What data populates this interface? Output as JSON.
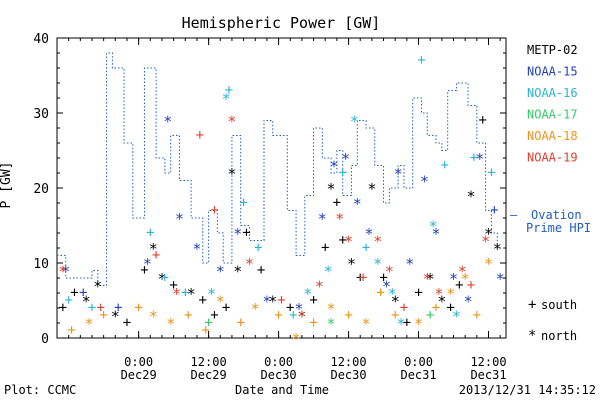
{
  "page": {
    "footer_left": "Plot: CCMC",
    "footer_right": "2013/12/31  14:35:12"
  },
  "legend": {
    "satellites": [
      {
        "name": "METP-02",
        "color": "#000000"
      },
      {
        "name": "NOAA-15",
        "color": "#1f3fbf"
      },
      {
        "name": "NOAA-16",
        "color": "#2ab4d6"
      },
      {
        "name": "NOAA-17",
        "color": "#33cc66"
      },
      {
        "name": "NOAA-18",
        "color": "#f0921a"
      },
      {
        "name": "NOAA-19",
        "color": "#e0402a"
      }
    ],
    "ovation": {
      "dash": "—",
      "label": "Ovation Prime HPI",
      "color": "#1f5fbf"
    },
    "markers": [
      {
        "symbol": "+",
        "label": "south"
      },
      {
        "symbol": "*",
        "label": "north"
      }
    ]
  },
  "chart_data": {
    "type": "scatter",
    "title": "Hemispheric Power [GW]",
    "xlabel": "Date and Time",
    "ylabel": "P [GW]",
    "ylim": [
      0,
      40
    ],
    "yticks": [
      0,
      10,
      20,
      30,
      40
    ],
    "xlim": [
      "2013-12-28T10:00",
      "2013-12-31T15:00"
    ],
    "xticks": [
      {
        "time": "2013-12-29T00:00",
        "line1": "0:00",
        "line2": "Dec29"
      },
      {
        "time": "2013-12-29T12:00",
        "line1": "12:00",
        "line2": "Dec29"
      },
      {
        "time": "2013-12-30T00:00",
        "line1": "0:00",
        "line2": "Dec30"
      },
      {
        "time": "2013-12-30T12:00",
        "line1": "12:00",
        "line2": "Dec30"
      },
      {
        "time": "2013-12-31T00:00",
        "line1": "0:00",
        "line2": "Dec31"
      },
      {
        "time": "2013-12-31T12:00",
        "line1": "12:00",
        "line2": "Dec31"
      }
    ],
    "ovation_step": [
      [
        "2013-12-28T10:00",
        11
      ],
      [
        "2013-12-28T11:30",
        8
      ],
      [
        "2013-12-28T14:00",
        8
      ],
      [
        "2013-12-28T16:00",
        9
      ],
      [
        "2013-12-28T17:00",
        7
      ],
      [
        "2013-12-28T18:30",
        38
      ],
      [
        "2013-12-28T19:30",
        36
      ],
      [
        "2013-12-28T21:30",
        26
      ],
      [
        "2013-12-28T23:00",
        16
      ],
      [
        "2013-12-29T01:00",
        36
      ],
      [
        "2013-12-29T03:00",
        24
      ],
      [
        "2013-12-29T04:30",
        22
      ],
      [
        "2013-12-29T05:30",
        27
      ],
      [
        "2013-12-29T07:00",
        21
      ],
      [
        "2013-12-29T09:00",
        16
      ],
      [
        "2013-12-29T11:00",
        10
      ],
      [
        "2013-12-29T12:00",
        17
      ],
      [
        "2013-12-29T13:30",
        14
      ],
      [
        "2013-12-29T14:30",
        10
      ],
      [
        "2013-12-29T16:00",
        27
      ],
      [
        "2013-12-29T17:30",
        15
      ],
      [
        "2013-12-29T19:00",
        13
      ],
      [
        "2013-12-29T20:30",
        13
      ],
      [
        "2013-12-29T21:30",
        29
      ],
      [
        "2013-12-29T23:00",
        27
      ],
      [
        "2013-12-30T01:30",
        17
      ],
      [
        "2013-12-30T03:00",
        11
      ],
      [
        "2013-12-30T04:30",
        19
      ],
      [
        "2013-12-30T06:00",
        28
      ],
      [
        "2013-12-30T07:30",
        24
      ],
      [
        "2013-12-30T09:00",
        22
      ],
      [
        "2013-12-30T10:00",
        25
      ],
      [
        "2013-12-30T11:00",
        19
      ],
      [
        "2013-12-30T12:30",
        23
      ],
      [
        "2013-12-30T13:30",
        29
      ],
      [
        "2013-12-30T15:00",
        28
      ],
      [
        "2013-12-30T16:30",
        23
      ],
      [
        "2013-12-30T18:00",
        18
      ],
      [
        "2013-12-30T19:00",
        20
      ],
      [
        "2013-12-30T20:30",
        23
      ],
      [
        "2013-12-30T21:30",
        20
      ],
      [
        "2013-12-30T23:00",
        32
      ],
      [
        "2013-12-31T00:30",
        30
      ],
      [
        "2013-12-31T01:30",
        27
      ],
      [
        "2013-12-31T03:00",
        26
      ],
      [
        "2013-12-31T04:00",
        25
      ],
      [
        "2013-12-31T05:00",
        33
      ],
      [
        "2013-12-31T06:30",
        34
      ],
      [
        "2013-12-31T07:30",
        34
      ],
      [
        "2013-12-31T08:30",
        31
      ],
      [
        "2013-12-31T10:00",
        26
      ],
      [
        "2013-12-31T11:30",
        17
      ],
      [
        "2013-12-31T12:30",
        14
      ],
      [
        "2013-12-31T13:30",
        12
      ],
      [
        "2013-12-31T15:00",
        12
      ]
    ],
    "series": [
      {
        "name": "METP-02",
        "color": "#000000",
        "points": [
          [
            "2013-12-28T11:00",
            4,
            "+"
          ],
          [
            "2013-12-28T13:00",
            6,
            "+"
          ],
          [
            "2013-12-28T15:00",
            5,
            "*"
          ],
          [
            "2013-12-28T17:00",
            7,
            "*"
          ],
          [
            "2013-12-28T20:00",
            3,
            "*"
          ],
          [
            "2013-12-28T22:00",
            2,
            "+"
          ],
          [
            "2013-12-29T01:00",
            9,
            "+"
          ],
          [
            "2013-12-29T02:30",
            12,
            "*"
          ],
          [
            "2013-12-29T04:00",
            8,
            "*"
          ],
          [
            "2013-12-29T06:00",
            7,
            "+"
          ],
          [
            "2013-12-29T09:00",
            6,
            "*"
          ],
          [
            "2013-12-29T11:00",
            5,
            "+"
          ],
          [
            "2013-12-29T13:00",
            3,
            "+"
          ],
          [
            "2013-12-29T15:00",
            4,
            "+"
          ],
          [
            "2013-12-29T16:00",
            22,
            "*"
          ],
          [
            "2013-12-29T17:00",
            9,
            "*"
          ],
          [
            "2013-12-29T18:30",
            14,
            "+"
          ],
          [
            "2013-12-29T21:00",
            9,
            "+"
          ],
          [
            "2013-12-29T23:00",
            5,
            "*"
          ],
          [
            "2013-12-30T02:00",
            4,
            "+"
          ],
          [
            "2013-12-30T04:00",
            3,
            "*"
          ],
          [
            "2013-12-30T06:00",
            5,
            "+"
          ],
          [
            "2013-12-30T08:00",
            12,
            "+"
          ],
          [
            "2013-12-30T09:00",
            20,
            "*"
          ],
          [
            "2013-12-30T10:00",
            18,
            "+"
          ],
          [
            "2013-12-30T11:00",
            13,
            "+"
          ],
          [
            "2013-12-30T12:30",
            10,
            "*"
          ],
          [
            "2013-12-30T14:00",
            8,
            "+"
          ],
          [
            "2013-12-30T16:00",
            20,
            "*"
          ],
          [
            "2013-12-30T18:00",
            8,
            "+"
          ],
          [
            "2013-12-30T20:00",
            5,
            "*"
          ],
          [
            "2013-12-30T22:00",
            2,
            "+"
          ],
          [
            "2013-12-31T00:00",
            6,
            "+"
          ],
          [
            "2013-12-31T02:00",
            8,
            "*"
          ],
          [
            "2013-12-31T04:00",
            5,
            "*"
          ],
          [
            "2013-12-31T05:30",
            4,
            "+"
          ],
          [
            "2013-12-31T07:00",
            7,
            "+"
          ],
          [
            "2013-12-31T09:00",
            19,
            "*"
          ],
          [
            "2013-12-31T11:00",
            29,
            "+"
          ],
          [
            "2013-12-31T12:00",
            14,
            "*"
          ],
          [
            "2013-12-31T13:30",
            12,
            "*"
          ]
        ]
      },
      {
        "name": "NOAA-15",
        "color": "#1f3fbf",
        "points": [
          [
            "2013-12-28T11:30",
            9,
            "*"
          ],
          [
            "2013-12-28T14:30",
            6,
            "+"
          ],
          [
            "2013-12-28T20:30",
            4,
            "+"
          ],
          [
            "2013-12-29T01:30",
            10,
            "*"
          ],
          [
            "2013-12-29T05:00",
            29,
            "*"
          ],
          [
            "2013-12-29T07:00",
            16,
            "*"
          ],
          [
            "2013-12-29T10:00",
            12,
            "*"
          ],
          [
            "2013-12-29T14:00",
            9,
            "*"
          ],
          [
            "2013-12-29T17:00",
            14,
            "*"
          ],
          [
            "2013-12-29T22:00",
            5,
            "*"
          ],
          [
            "2013-12-30T03:30",
            4,
            "*"
          ],
          [
            "2013-12-30T07:30",
            16,
            "*"
          ],
          [
            "2013-12-30T09:30",
            23,
            "*"
          ],
          [
            "2013-12-30T11:30",
            24,
            "*"
          ],
          [
            "2013-12-30T13:30",
            18,
            "*"
          ],
          [
            "2013-12-30T15:30",
            14,
            "*"
          ],
          [
            "2013-12-30T18:30",
            7,
            "*"
          ],
          [
            "2013-12-30T20:30",
            22,
            "*"
          ],
          [
            "2013-12-30T22:30",
            10,
            "*"
          ],
          [
            "2013-12-31T01:00",
            21,
            "*"
          ],
          [
            "2013-12-31T03:00",
            14,
            "*"
          ],
          [
            "2013-12-31T06:00",
            8,
            "*"
          ],
          [
            "2013-12-31T08:30",
            5,
            "*"
          ],
          [
            "2013-12-31T10:30",
            24,
            "*"
          ],
          [
            "2013-12-31T13:00",
            17,
            "+"
          ],
          [
            "2013-12-31T14:00",
            8,
            "*"
          ]
        ]
      },
      {
        "name": "NOAA-16",
        "color": "#2ab4d6",
        "points": [
          [
            "2013-12-28T12:00",
            5,
            "+"
          ],
          [
            "2013-12-28T16:00",
            4,
            "+"
          ],
          [
            "2013-12-29T02:00",
            14,
            "+"
          ],
          [
            "2013-12-29T04:30",
            8,
            "+"
          ],
          [
            "2013-12-29T08:00",
            6,
            "+"
          ],
          [
            "2013-12-29T12:30",
            6,
            "*"
          ],
          [
            "2013-12-29T15:00",
            32,
            "*"
          ],
          [
            "2013-12-29T15:30",
            33,
            "+"
          ],
          [
            "2013-12-29T18:00",
            18,
            "+"
          ],
          [
            "2013-12-29T20:30",
            12,
            "+"
          ],
          [
            "2013-12-30T02:30",
            3,
            "+"
          ],
          [
            "2013-12-30T05:00",
            6,
            "*"
          ],
          [
            "2013-12-30T08:30",
            9,
            "*"
          ],
          [
            "2013-12-30T11:00",
            22,
            "+"
          ],
          [
            "2013-12-30T13:00",
            29,
            "*"
          ],
          [
            "2013-12-30T15:00",
            12,
            "+"
          ],
          [
            "2013-12-30T17:00",
            10,
            "*"
          ],
          [
            "2013-12-30T19:30",
            6,
            "*"
          ],
          [
            "2013-12-30T21:00",
            2,
            "*"
          ],
          [
            "2013-12-31T00:30",
            37,
            "+"
          ],
          [
            "2013-12-31T02:30",
            15,
            "*"
          ],
          [
            "2013-12-31T04:30",
            23,
            "+"
          ],
          [
            "2013-12-31T06:30",
            3,
            "*"
          ],
          [
            "2013-12-31T09:30",
            24,
            "+"
          ],
          [
            "2013-12-31T12:30",
            22,
            "+"
          ]
        ]
      },
      {
        "name": "NOAA-17",
        "color": "#33cc66",
        "points": [
          [
            "2013-12-29T12:00",
            2,
            "+"
          ],
          [
            "2013-12-30T09:00",
            2,
            "*"
          ],
          [
            "2013-12-31T02:00",
            3,
            "+"
          ]
        ]
      },
      {
        "name": "NOAA-18",
        "color": "#f0921a",
        "points": [
          [
            "2013-12-28T12:30",
            1,
            "+"
          ],
          [
            "2013-12-28T15:30",
            2,
            "*"
          ],
          [
            "2013-12-28T18:00",
            3,
            "+"
          ],
          [
            "2013-12-29T00:00",
            4,
            "+"
          ],
          [
            "2013-12-29T02:30",
            3,
            "*"
          ],
          [
            "2013-12-29T05:30",
            2,
            "*"
          ],
          [
            "2013-12-29T08:30",
            3,
            "+"
          ],
          [
            "2013-12-29T11:30",
            1,
            "+"
          ],
          [
            "2013-12-29T14:00",
            5,
            "*"
          ],
          [
            "2013-12-29T17:30",
            2,
            "+"
          ],
          [
            "2013-12-29T20:00",
            4,
            "*"
          ],
          [
            "2013-12-30T00:00",
            3,
            "+"
          ],
          [
            "2013-12-30T03:00",
            0,
            "*"
          ],
          [
            "2013-12-30T06:00",
            2,
            "+"
          ],
          [
            "2013-12-30T09:00",
            4,
            "*"
          ],
          [
            "2013-12-30T12:00",
            3,
            "+"
          ],
          [
            "2013-12-30T15:00",
            2,
            "*"
          ],
          [
            "2013-12-30T17:30",
            6,
            "+"
          ],
          [
            "2013-12-30T20:00",
            3,
            "+"
          ],
          [
            "2013-12-31T00:00",
            2,
            "*"
          ],
          [
            "2013-12-31T03:00",
            4,
            "+"
          ],
          [
            "2013-12-31T05:30",
            6,
            "*"
          ],
          [
            "2013-12-31T08:00",
            8,
            "*"
          ],
          [
            "2013-12-31T10:00",
            3,
            "+"
          ],
          [
            "2013-12-31T12:00",
            10,
            "*"
          ]
        ]
      },
      {
        "name": "NOAA-19",
        "color": "#e0402a",
        "points": [
          [
            "2013-12-28T11:00",
            9,
            "*"
          ],
          [
            "2013-12-28T17:30",
            4,
            "+"
          ],
          [
            "2013-12-29T03:00",
            11,
            "+"
          ],
          [
            "2013-12-29T06:30",
            6,
            "*"
          ],
          [
            "2013-12-29T10:30",
            27,
            "+"
          ],
          [
            "2013-12-29T13:00",
            17,
            "+"
          ],
          [
            "2013-12-29T16:00",
            29,
            "*"
          ],
          [
            "2013-12-29T19:00",
            10,
            "*"
          ],
          [
            "2013-12-30T00:30",
            5,
            "+"
          ],
          [
            "2013-12-30T04:00",
            3,
            "*"
          ],
          [
            "2013-12-30T07:00",
            7,
            "*"
          ],
          [
            "2013-12-30T10:30",
            16,
            "*"
          ],
          [
            "2013-12-30T12:00",
            13,
            "*"
          ],
          [
            "2013-12-30T14:30",
            8,
            "+"
          ],
          [
            "2013-12-30T17:00",
            13,
            "*"
          ],
          [
            "2013-12-30T19:00",
            9,
            "*"
          ],
          [
            "2013-12-30T21:30",
            4,
            "+"
          ],
          [
            "2013-12-31T01:30",
            8,
            "*"
          ],
          [
            "2013-12-31T03:30",
            6,
            "*"
          ],
          [
            "2013-12-31T07:30",
            9,
            "*"
          ],
          [
            "2013-12-31T09:00",
            7,
            "+"
          ],
          [
            "2013-12-31T11:30",
            13,
            "*"
          ]
        ]
      }
    ]
  }
}
